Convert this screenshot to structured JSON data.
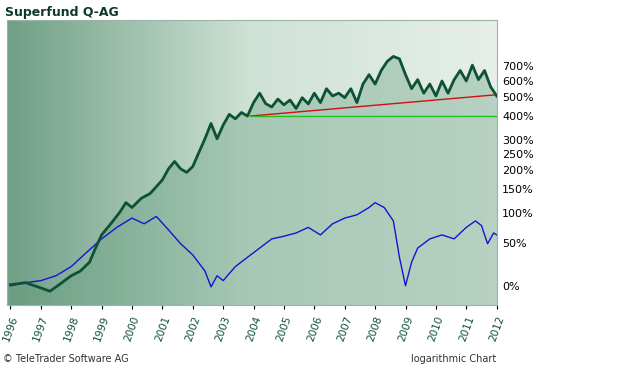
{
  "chart_data": {
    "type": "line",
    "title": "Superfund Q-AG",
    "annotations": [
      "© TeleTrader Software AG",
      "logarithmic Chart"
    ],
    "log": "y",
    "grid": false,
    "xlim": [
      1995.9,
      2012.0
    ],
    "xticks": [
      1996,
      1997,
      1998,
      1999,
      2000,
      2001,
      2002,
      2003,
      2004,
      2005,
      2006,
      2007,
      2008,
      2009,
      2010,
      2011,
      2012
    ],
    "ylim": [
      -17,
      1140
    ],
    "yticks": [
      {
        "value": 0,
        "label": "0%"
      },
      {
        "value": 50,
        "label": "50%"
      },
      {
        "value": 100,
        "label": "100%"
      },
      {
        "value": 150,
        "label": "150%"
      },
      {
        "value": 200,
        "label": "200%"
      },
      {
        "value": 250,
        "label": "250%"
      },
      {
        "value": 300,
        "label": "300%"
      },
      {
        "value": 400,
        "label": "400%"
      },
      {
        "value": 500,
        "label": "500%"
      },
      {
        "value": 600,
        "label": "600%"
      },
      {
        "value": 700,
        "label": "700%"
      }
    ],
    "series": [
      {
        "color": "#0d5234",
        "type": "area",
        "x": [
          1996.0,
          1996.5,
          1997.0,
          1997.3,
          1997.6,
          1998.0,
          1998.3,
          1998.6,
          1998.8,
          1999.0,
          1999.3,
          1999.6,
          1999.8,
          2000.0,
          2000.3,
          2000.6,
          2001.0,
          2001.2,
          2001.4,
          2001.6,
          2001.8,
          2002.0,
          2002.2,
          2002.4,
          2002.6,
          2002.8,
          2003.0,
          2003.2,
          2003.4,
          2003.6,
          2003.8,
          2004.0,
          2004.2,
          2004.4,
          2004.6,
          2004.8,
          2005.0,
          2005.2,
          2005.4,
          2005.6,
          2005.8,
          2006.0,
          2006.2,
          2006.4,
          2006.6,
          2006.8,
          2007.0,
          2007.2,
          2007.4,
          2007.6,
          2007.8,
          2008.0,
          2008.2,
          2008.4,
          2008.6,
          2008.8,
          2009.0,
          2009.2,
          2009.4,
          2009.6,
          2009.8,
          2010.0,
          2010.2,
          2010.4,
          2010.6,
          2010.8,
          2011.0,
          2011.2,
          2011.4,
          2011.6,
          2011.8,
          2012.0
        ],
        "values": [
          1,
          3,
          -2,
          -5,
          1,
          10,
          15,
          25,
          43,
          62,
          80,
          101,
          120,
          110,
          129,
          140,
          173,
          203,
          225,
          203,
          193,
          210,
          254,
          303,
          366,
          303,
          359,
          408,
          387,
          417,
          400,
          468,
          521,
          462,
          445,
          487,
          456,
          482,
          437,
          495,
          461,
          521,
          468,
          548,
          505,
          521,
          495,
          548,
          468,
          577,
          640,
          577,
          670,
          740,
          780,
          760,
          640,
          548,
          606,
          521,
          577,
          505,
          597,
          521,
          606,
          670,
          597,
          710,
          606,
          670,
          560,
          505
        ]
      },
      {
        "color": "#1515d0",
        "type": "line",
        "x": [
          1996.0,
          1996.5,
          1997.0,
          1997.5,
          1998.0,
          1998.5,
          1999.0,
          1999.5,
          2000.0,
          2000.4,
          2000.8,
          2001.2,
          2001.6,
          2002.0,
          2002.4,
          2002.6,
          2002.8,
          2003.0,
          2003.4,
          2003.8,
          2004.2,
          2004.6,
          2005.0,
          2005.4,
          2005.8,
          2006.2,
          2006.6,
          2007.0,
          2007.4,
          2007.8,
          2008.0,
          2008.3,
          2008.6,
          2008.8,
          2009.0,
          2009.2,
          2009.4,
          2009.8,
          2010.2,
          2010.6,
          2011.0,
          2011.3,
          2011.5,
          2011.7,
          2011.9,
          2012.0
        ],
        "values": [
          0,
          3,
          5,
          10,
          20,
          37,
          56,
          74,
          90,
          80,
          93,
          70,
          49,
          34,
          15,
          -1,
          10,
          5,
          20,
          31,
          43,
          56,
          60,
          65,
          74,
          62,
          80,
          90,
          96,
          110,
          120,
          110,
          85,
          31,
          0,
          25,
          43,
          56,
          62,
          56,
          74,
          85,
          77,
          49,
          65,
          62
        ]
      },
      {
        "color": "#d01010",
        "type": "line",
        "x": [
          2003.9,
          2012.0
        ],
        "values": [
          400,
          512
        ]
      },
      {
        "color": "#20c020",
        "type": "line",
        "x": [
          2003.9,
          2012.0
        ],
        "values": [
          400,
          400
        ]
      }
    ]
  }
}
